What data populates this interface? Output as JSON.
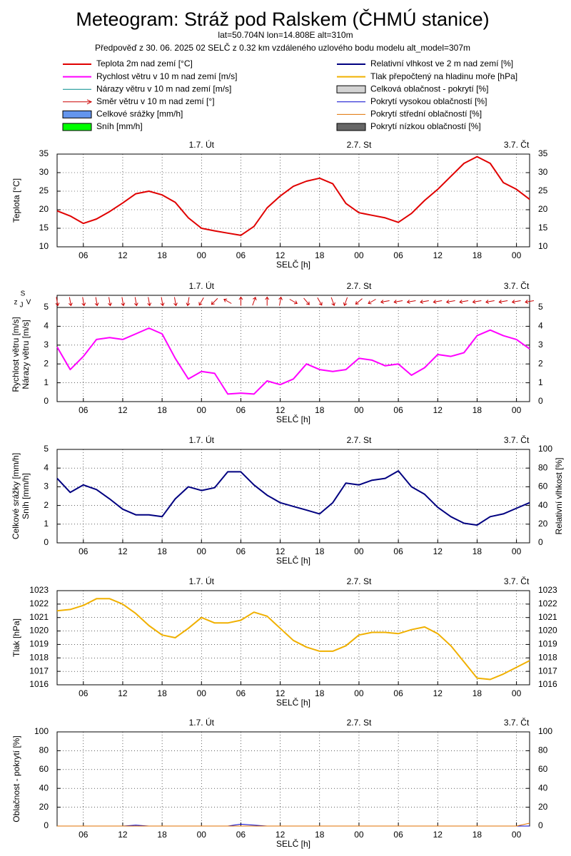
{
  "header": {
    "title": "Meteogram: Stráž pod Ralskem (ČHMÚ stanice)",
    "location": "lat=50.704N lon=14.808E alt=310m",
    "forecast": "Předpověď z 30. 06. 2025 02 SELČ z 0.32 km vzdáleného uzlového bodu modelu alt_model=307m"
  },
  "legend": [
    {
      "name": "Teplota 2m nad zemí [°C]",
      "color": "#e00000",
      "style": "line"
    },
    {
      "name": "Rychlost větru v 10 m nad zemí [m/s]",
      "color": "#ff00ff",
      "style": "line"
    },
    {
      "name": "Nárazy větru v 10 m nad zemí [m/s]",
      "color": "#008b8b",
      "style": "thin"
    },
    {
      "name": "Směr větru v 10 m nad zemí [°]",
      "color": "#cc0000",
      "style": "arrow"
    },
    {
      "name": "Celkové srážky [mm/h]",
      "color": "#6495ed",
      "style": "box"
    },
    {
      "name": "Sníh [mm/h]",
      "color": "#00ff00",
      "style": "box"
    },
    {
      "name": "Relativní vlhkost ve 2 m nad zemí [%]",
      "color": "#000080",
      "style": "line"
    },
    {
      "name": "Tlak přepočtený na hladinu moře [hPa]",
      "color": "#f0b000",
      "style": "line"
    },
    {
      "name": "Celková oblačnost - pokrytí [%]",
      "color": "#d3d3d3",
      "style": "box"
    },
    {
      "name": "Pokrytí vysokou oblačností [%]",
      "color": "#0000cd",
      "style": "thin"
    },
    {
      "name": "Pokrytí střední oblačností [%]",
      "color": "#e07000",
      "style": "thin"
    },
    {
      "name": "Pokrytí nízkou oblačností [%]",
      "color": "#666666",
      "style": "box"
    }
  ],
  "time_axis": {
    "xlabel": "SELČ [h]",
    "xlim": [
      2,
      74
    ],
    "x": [
      2,
      4,
      6,
      8,
      10,
      12,
      14,
      16,
      18,
      20,
      22,
      24,
      26,
      28,
      30,
      32,
      34,
      36,
      38,
      40,
      42,
      44,
      46,
      48,
      50,
      52,
      54,
      56,
      58,
      60,
      62,
      64,
      66,
      68,
      70,
      72,
      74
    ],
    "xticks": [
      {
        "value": 6,
        "label": "06"
      },
      12,
      18,
      {
        "value": 24,
        "label": "00"
      },
      {
        "value": 30,
        "label": "06"
      },
      {
        "value": 36,
        "label": "12"
      },
      {
        "value": 42,
        "label": "18"
      },
      {
        "value": 48,
        "label": "00"
      },
      {
        "value": 54,
        "label": "06"
      },
      {
        "value": 60,
        "label": "12"
      },
      {
        "value": 66,
        "label": "18"
      },
      {
        "value": 72,
        "label": "00"
      }
    ],
    "days": [
      {
        "value": 24,
        "label": "1.7. Út"
      },
      {
        "value": 48,
        "label": "2.7. St"
      },
      {
        "value": 72,
        "label": "3.7. Čt"
      }
    ],
    "grid": true
  },
  "chart_data": [
    {
      "type": "line",
      "ylabel": [
        "Teplota [°C]"
      ],
      "ylim": [
        10,
        35
      ],
      "yticks": [
        10,
        15,
        20,
        25,
        30,
        35
      ],
      "mirror": true,
      "series": [
        {
          "color": "#e00000",
          "width": 2,
          "values": [
            19.7,
            18.3,
            16.3,
            17.5,
            19.5,
            21.8,
            24.3,
            25,
            24,
            22,
            17.8,
            15,
            14.3,
            13.7,
            13.1,
            15.5,
            20.5,
            23.7,
            26.3,
            27.7,
            28.5,
            27,
            21.7,
            19.2,
            18.5,
            17.8,
            16.6,
            19,
            22.5,
            25.5,
            29,
            32.5,
            34.3,
            32.5,
            27.3,
            25.5,
            22.8
          ]
        }
      ]
    },
    {
      "type": "line",
      "ylabel": [
        "Rychlost větru [m/s]",
        "Nárazy větru [m/s]"
      ],
      "ylim": [
        0,
        5
      ],
      "yticks": [
        0,
        1,
        2,
        3,
        4,
        5
      ],
      "mirror": true,
      "compass": [
        "S",
        "z",
        "J",
        "V"
      ],
      "wind_direction": [
        350,
        350,
        350,
        350,
        350,
        350,
        350,
        350,
        350,
        350,
        10,
        30,
        45,
        120,
        180,
        200,
        180,
        190,
        300,
        320,
        330,
        340,
        20,
        50,
        60,
        80,
        80,
        80,
        80,
        80,
        80,
        80,
        80,
        80,
        80,
        80,
        80
      ],
      "series": [
        {
          "color": "#ff00ff",
          "width": 2,
          "values": [
            2.9,
            1.7,
            2.4,
            3.3,
            3.4,
            3.3,
            3.6,
            3.9,
            3.6,
            2.3,
            1.2,
            1.6,
            1.5,
            0.4,
            0.45,
            0.4,
            1.1,
            0.9,
            1.2,
            2,
            1.7,
            1.6,
            1.7,
            2.3,
            2.2,
            1.9,
            2,
            1.4,
            1.8,
            2.5,
            2.4,
            2.6,
            3.5,
            3.8,
            3.5,
            3.3,
            2.8
          ]
        }
      ]
    },
    {
      "type": "line",
      "ylabel": [
        "Celkové srážky [mm/h]",
        "Sníh [mm/h]"
      ],
      "ylim": [
        0,
        5
      ],
      "yticks": [
        0,
        1,
        2,
        3,
        4,
        5
      ],
      "y2label": "Relativní vlhkost [%]",
      "y2lim": [
        0,
        100
      ],
      "y2ticks": [
        0,
        20,
        40,
        60,
        80,
        100
      ],
      "series": [
        {
          "color": "#000080",
          "width": 2,
          "axis": "y2",
          "values": [
            69,
            54,
            62,
            57,
            47,
            36,
            30,
            30,
            28,
            47,
            60,
            56,
            59,
            76,
            76,
            62,
            51,
            43,
            39,
            35,
            31,
            43,
            64,
            62,
            67,
            69,
            77,
            60,
            52,
            38,
            28,
            21,
            19,
            28,
            31,
            37,
            43
          ]
        }
      ]
    },
    {
      "type": "line",
      "ylabel": [
        "Tlak [hPa]"
      ],
      "ylim": [
        1016,
        1023
      ],
      "yticks": [
        1016,
        1017,
        1018,
        1019,
        1020,
        1021,
        1022,
        1023
      ],
      "mirror": true,
      "series": [
        {
          "color": "#f0b000",
          "width": 2,
          "values": [
            1021.5,
            1021.6,
            1021.9,
            1022.4,
            1022.4,
            1022,
            1021.3,
            1020.4,
            1019.7,
            1019.5,
            1020.2,
            1021,
            1020.6,
            1020.6,
            1020.8,
            1021.4,
            1021.1,
            1020.2,
            1019.3,
            1018.8,
            1018.5,
            1018.5,
            1018.9,
            1019.7,
            1019.9,
            1019.9,
            1019.8,
            1020.1,
            1020.3,
            1019.8,
            1018.9,
            1017.7,
            1016.5,
            1016.4,
            1016.8,
            1017.3,
            1017.8
          ]
        }
      ]
    },
    {
      "type": "line",
      "ylabel": [
        "Oblačnost - pokrytí [%]"
      ],
      "ylim": [
        0,
        100
      ],
      "yticks": [
        0,
        20,
        40,
        60,
        80,
        100
      ],
      "mirror": true,
      "series": [
        {
          "color": "#0000cd",
          "width": 1,
          "values": [
            0,
            0,
            0,
            0,
            0,
            0,
            1,
            0,
            0,
            0,
            0,
            0,
            0,
            0,
            2,
            1,
            0,
            0,
            0,
            0,
            0,
            0,
            0,
            0,
            0,
            0,
            0,
            0,
            0,
            0,
            0,
            0,
            0,
            0,
            0,
            0,
            0
          ]
        },
        {
          "color": "#e07000",
          "width": 1,
          "values": [
            0,
            0,
            0,
            0,
            0,
            0,
            0,
            0,
            0,
            0,
            0,
            0,
            0,
            0,
            0,
            0,
            0,
            0,
            0,
            0,
            0,
            0,
            0,
            0,
            0,
            0,
            0,
            0,
            0,
            0,
            0,
            0,
            0,
            0,
            0,
            0,
            3
          ]
        }
      ]
    }
  ]
}
